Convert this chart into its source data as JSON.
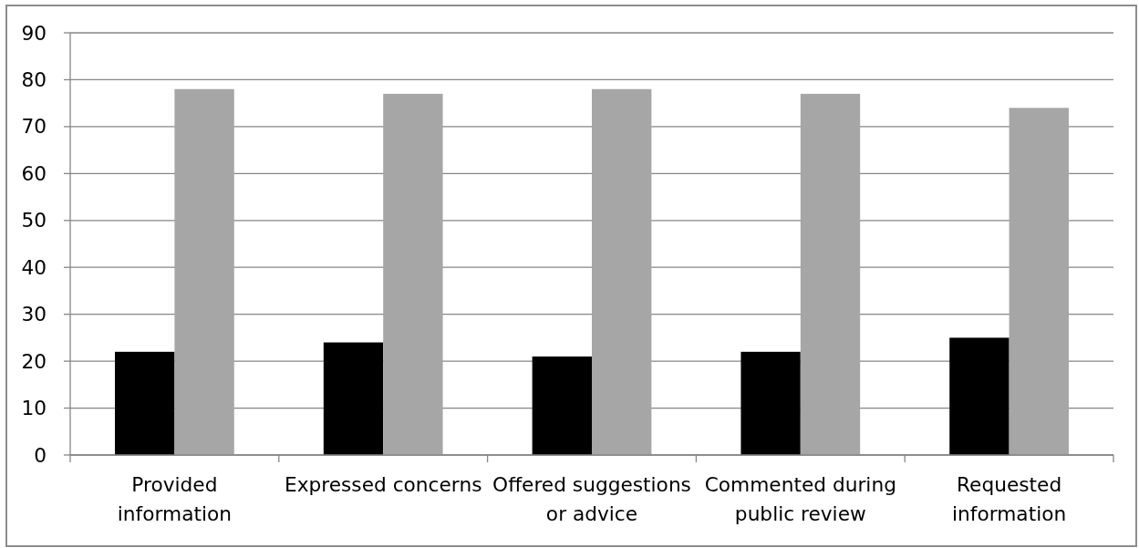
{
  "chart_data": {
    "type": "bar",
    "categories": [
      "Provided information",
      "Expressed concerns",
      "Offered suggestions or advice",
      "Commented during public review",
      "Requested information"
    ],
    "series": [
      {
        "color": "#000000",
        "values": [
          22,
          24,
          21,
          22,
          25
        ]
      },
      {
        "color": "#a6a6a6",
        "values": [
          78,
          77,
          78,
          77,
          74
        ]
      }
    ],
    "ylim": [
      0,
      90
    ],
    "yticks": [
      0,
      10,
      20,
      30,
      40,
      50,
      60,
      70,
      80,
      90
    ],
    "grid": "y"
  }
}
